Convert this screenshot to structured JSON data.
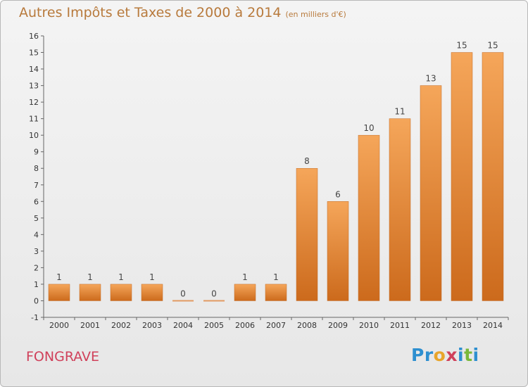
{
  "header": {
    "title": "Autres Impôts et Taxes de 2000 à 2014",
    "subtitle": "(en milliers d'€)"
  },
  "footer": {
    "commune": "FONGRAVE",
    "logo_text": "Proxiti",
    "logo_letters": [
      {
        "ch": "P",
        "color": "#2d8fd0"
      },
      {
        "ch": "r",
        "color": "#2d8fd0"
      },
      {
        "ch": "o",
        "color": "#e8a52a"
      },
      {
        "ch": "x",
        "color": "#d0405a"
      },
      {
        "ch": "i",
        "color": "#2d8fd0"
      },
      {
        "ch": "t",
        "color": "#7ab83a"
      },
      {
        "ch": "i",
        "color": "#2d8fd0"
      }
    ]
  },
  "chart_data": {
    "type": "bar",
    "title": "Autres Impôts et Taxes de 2000 à 2014",
    "subtitle": "(en milliers d'€)",
    "categories": [
      "2000",
      "2001",
      "2002",
      "2003",
      "2004",
      "2005",
      "2006",
      "2007",
      "2008",
      "2009",
      "2010",
      "2011",
      "2012",
      "2013",
      "2014"
    ],
    "values": [
      1,
      1,
      1,
      1,
      0,
      0,
      1,
      1,
      8,
      6,
      10,
      11,
      13,
      15,
      15
    ],
    "ylim": [
      -1,
      16
    ],
    "yticks": [
      -1,
      0,
      1,
      2,
      3,
      4,
      5,
      6,
      7,
      8,
      9,
      10,
      11,
      12,
      13,
      14,
      15,
      16
    ],
    "grid": false,
    "colors": {
      "bar_top": "#f5a65a",
      "bar_bottom": "#cc6a1c",
      "zero_bar": "#e29a62"
    }
  }
}
